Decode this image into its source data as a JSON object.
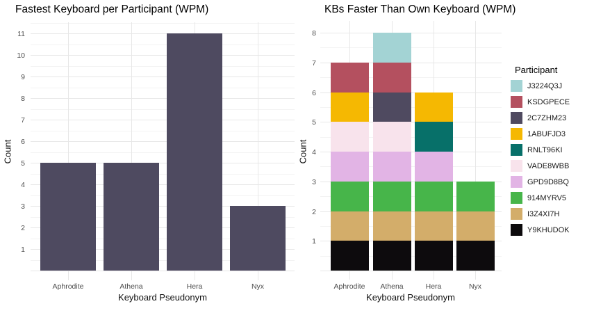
{
  "figure": {
    "background": "#ffffff",
    "grid_major_color": "#e7e7e7",
    "grid_minor_color": "#f3f3f3",
    "tick_label_color": "#4d4d4d"
  },
  "chart_data": [
    {
      "type": "bar",
      "title": "Fastest Keyboard per Participant (WPM)",
      "xlabel": "Keyboard Pseudonym",
      "ylabel": "Count",
      "categories": [
        "Aphrodite",
        "Athena",
        "Hera",
        "Nyx"
      ],
      "values": [
        5,
        5,
        11,
        3
      ],
      "bar_color": "#4e4a60",
      "yticks": [
        1,
        2,
        3,
        4,
        5,
        6,
        7,
        8,
        9,
        10,
        11
      ],
      "ylim": [
        0,
        11.55
      ],
      "grid": "on",
      "legend": "none"
    },
    {
      "type": "stacked-bar",
      "title": "KBs Faster Than Own Keyboard (WPM)",
      "xlabel": "Keyboard Pseudonym",
      "ylabel": "Count",
      "categories": [
        "Aphrodite",
        "Athena",
        "Hera",
        "Nyx"
      ],
      "totals": [
        7,
        8,
        6,
        3
      ],
      "yticks": [
        1,
        2,
        3,
        4,
        5,
        6,
        7,
        8
      ],
      "ylim": [
        0,
        8.4
      ],
      "grid": "on",
      "legend_title": "Participant",
      "legend_position": "right",
      "series": [
        {
          "name": "J3224Q3J",
          "color": "#a3d3d4",
          "values": [
            0,
            1,
            0,
            0
          ]
        },
        {
          "name": "KSDGPECE",
          "color": "#b4505f",
          "values": [
            1,
            1,
            0,
            0
          ]
        },
        {
          "name": "2C7ZHM23",
          "color": "#4f4a60",
          "values": [
            0,
            1,
            0,
            0
          ]
        },
        {
          "name": "1ABUFJD3",
          "color": "#f5b802",
          "values": [
            1,
            0,
            1,
            0
          ]
        },
        {
          "name": "RNLT96KI",
          "color": "#077069",
          "values": [
            0,
            0,
            1,
            0
          ]
        },
        {
          "name": "VADE8WBB",
          "color": "#f8e3ec",
          "values": [
            1,
            1,
            0,
            0
          ]
        },
        {
          "name": "GPD9D8BQ",
          "color": "#e2b4e5",
          "values": [
            1,
            1,
            1,
            0
          ]
        },
        {
          "name": "914MYRV5",
          "color": "#47b54a",
          "values": [
            1,
            1,
            1,
            1
          ]
        },
        {
          "name": "I3Z4XI7H",
          "color": "#d3ad6a",
          "values": [
            1,
            1,
            1,
            1
          ]
        },
        {
          "name": "Y9KHUDOK",
          "color": "#0d0b0d",
          "values": [
            1,
            1,
            1,
            1
          ]
        }
      ],
      "stack_order_note": "bottom-to-top = reverse of legend order"
    }
  ]
}
